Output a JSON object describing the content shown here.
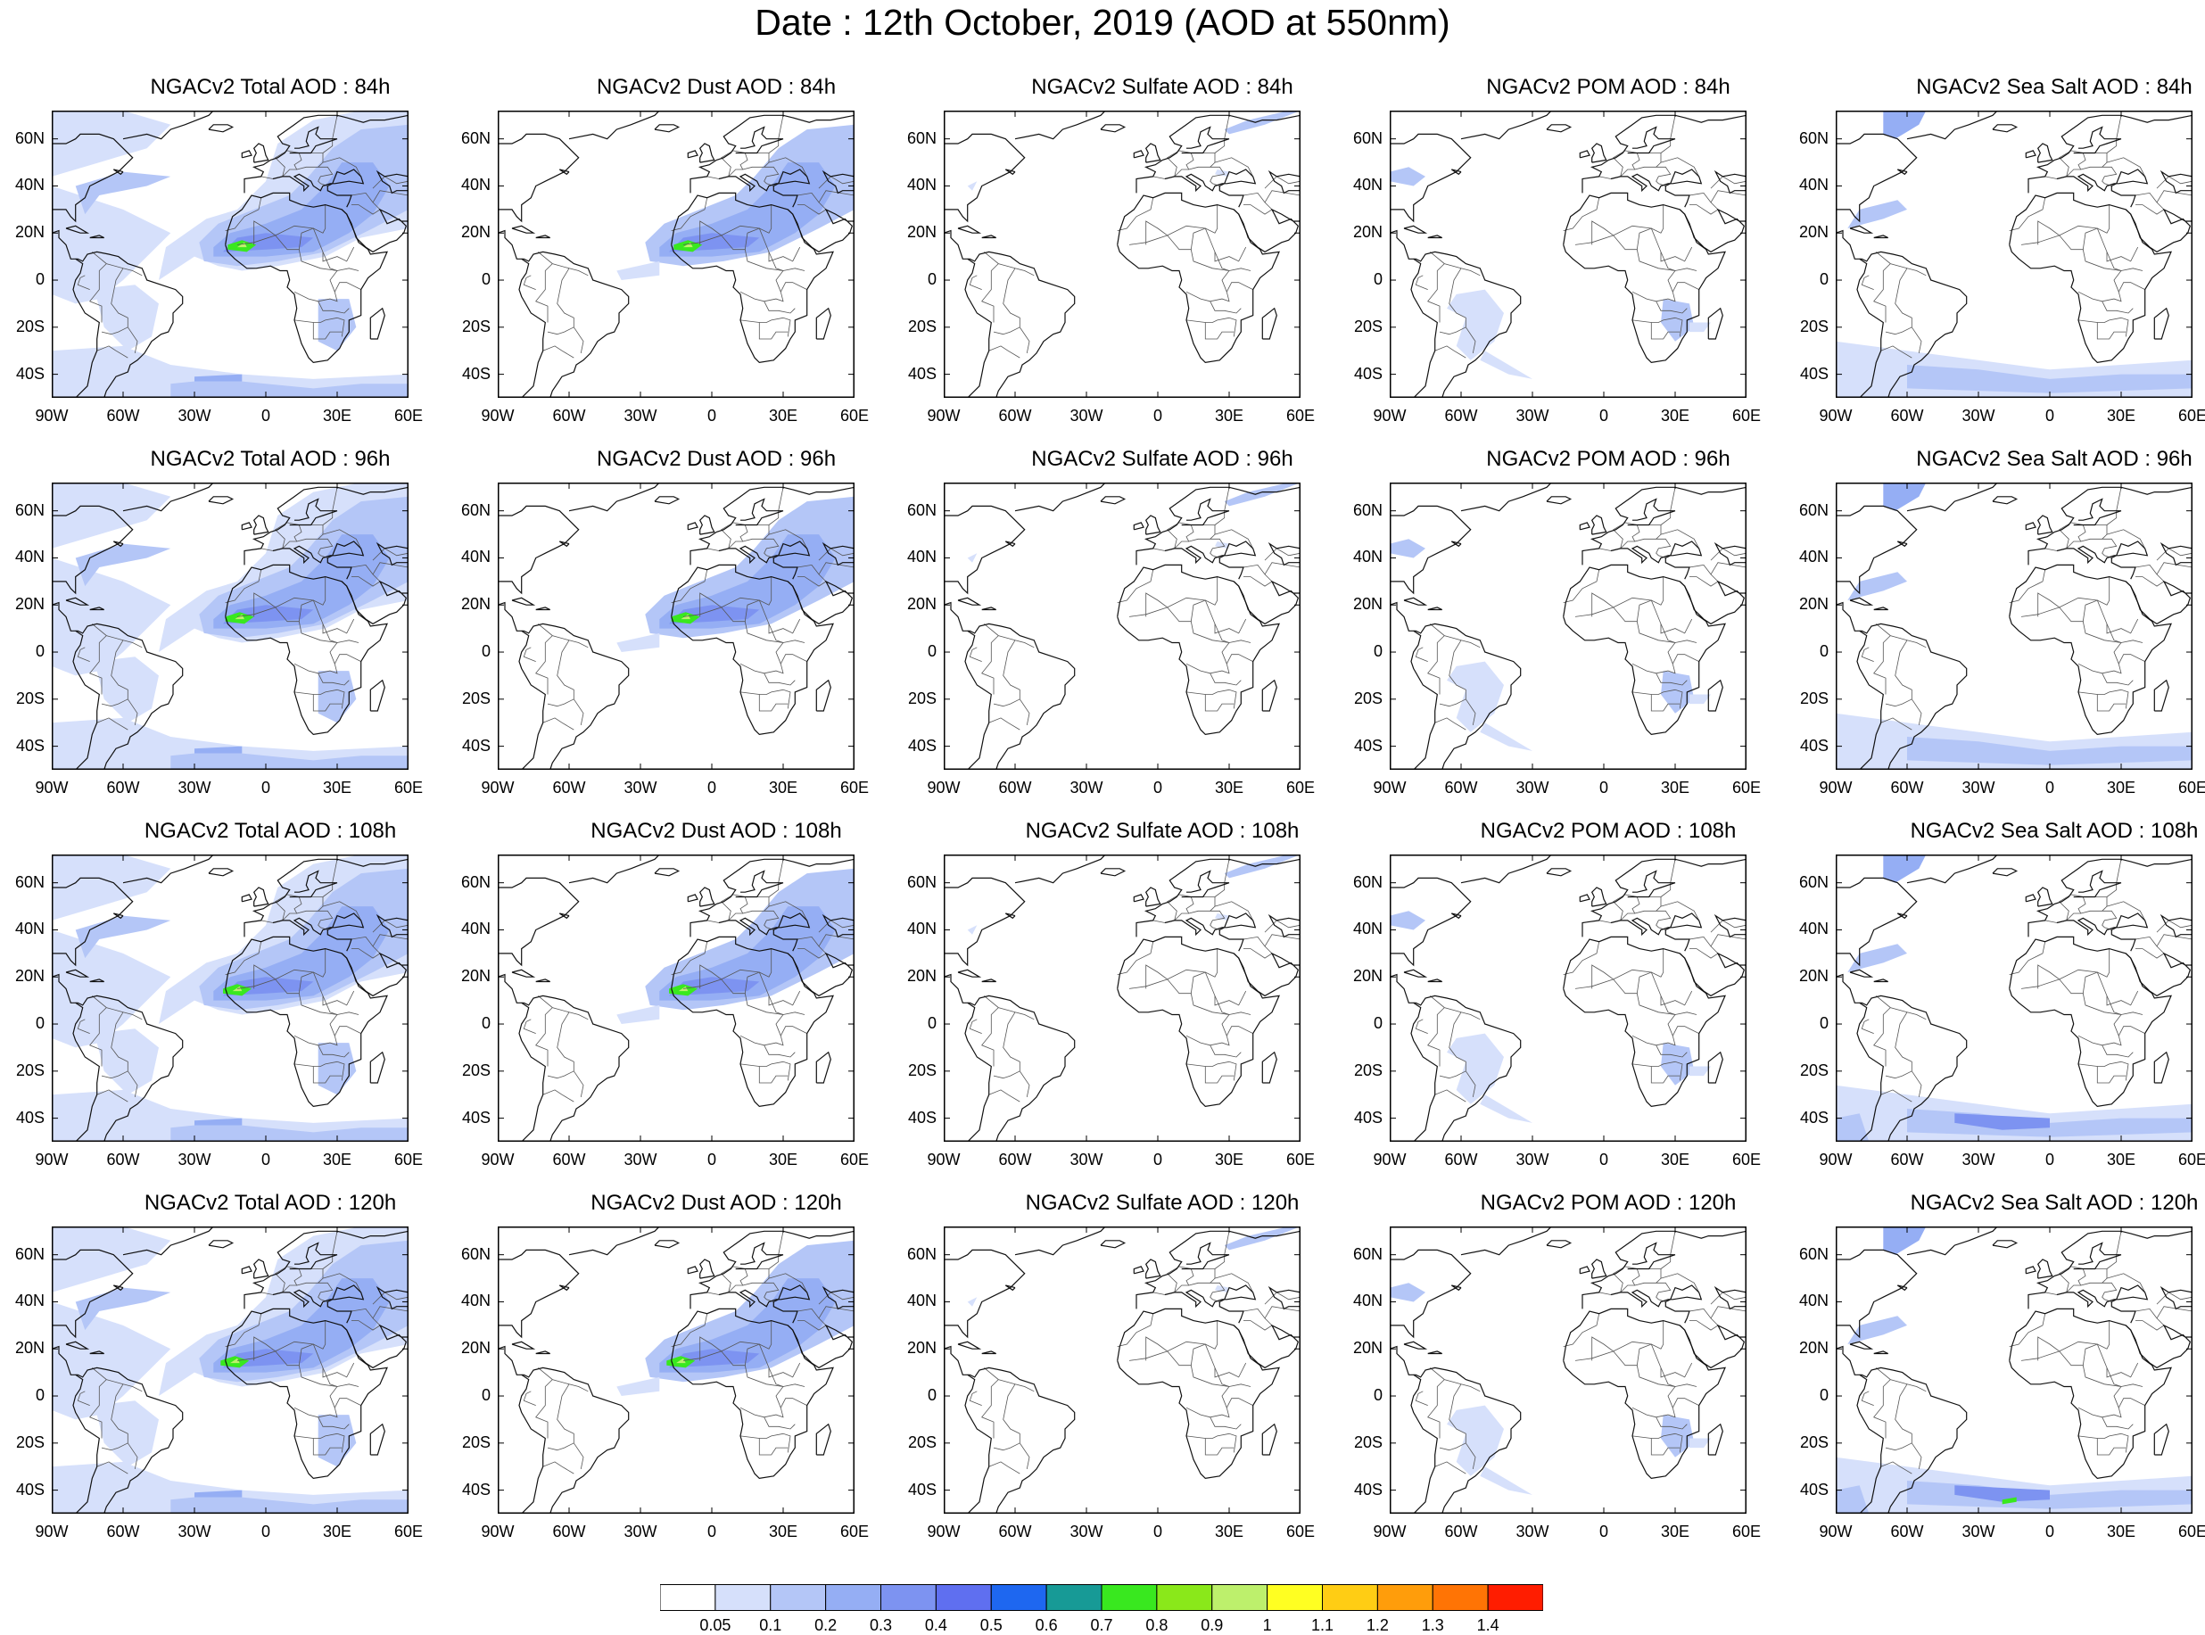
{
  "title": "Date : 12th October, 2019 (AOD at 550nm)",
  "lat_labels": [
    "60N",
    "40N",
    "20N",
    "0",
    "20S",
    "40S"
  ],
  "lon_labels": [
    "90W",
    "60W",
    "30W",
    "0",
    "30E",
    "60E"
  ],
  "panels": [
    {
      "title": "NGACv2 Total AOD : 84h",
      "species": "total",
      "lead_hours": 84
    },
    {
      "title": "NGACv2 Dust AOD : 84h",
      "species": "dust",
      "lead_hours": 84
    },
    {
      "title": "NGACv2 Sulfate AOD : 84h",
      "species": "sulfate",
      "lead_hours": 84
    },
    {
      "title": "NGACv2 POM AOD : 84h",
      "species": "pom",
      "lead_hours": 84
    },
    {
      "title": "NGACv2 Sea Salt AOD : 84h",
      "species": "seasalt",
      "lead_hours": 84
    },
    {
      "title": "NGACv2 Total AOD : 96h",
      "species": "total",
      "lead_hours": 96
    },
    {
      "title": "NGACv2 Dust AOD : 96h",
      "species": "dust",
      "lead_hours": 96
    },
    {
      "title": "NGACv2 Sulfate AOD : 96h",
      "species": "sulfate",
      "lead_hours": 96
    },
    {
      "title": "NGACv2 POM AOD : 96h",
      "species": "pom",
      "lead_hours": 96
    },
    {
      "title": "NGACv2 Sea Salt AOD : 96h",
      "species": "seasalt",
      "lead_hours": 96
    },
    {
      "title": "NGACv2 Total AOD : 108h",
      "species": "total",
      "lead_hours": 108
    },
    {
      "title": "NGACv2 Dust AOD : 108h",
      "species": "dust",
      "lead_hours": 108
    },
    {
      "title": "NGACv2 Sulfate AOD : 108h",
      "species": "sulfate",
      "lead_hours": 108
    },
    {
      "title": "NGACv2 POM AOD : 108h",
      "species": "pom",
      "lead_hours": 108
    },
    {
      "title": "NGACv2 Sea Salt AOD : 108h",
      "species": "seasalt",
      "lead_hours": 108
    },
    {
      "title": "NGACv2 Total AOD : 120h",
      "species": "total",
      "lead_hours": 120
    },
    {
      "title": "NGACv2 Dust AOD : 120h",
      "species": "dust",
      "lead_hours": 120
    },
    {
      "title": "NGACv2 Sulfate AOD : 120h",
      "species": "sulfate",
      "lead_hours": 120
    },
    {
      "title": "NGACv2 POM AOD : 120h",
      "species": "pom",
      "lead_hours": 120
    },
    {
      "title": "NGACv2 Sea Salt  AOD : 120h",
      "species": "seasalt",
      "lead_hours": 120
    }
  ],
  "colorbar": {
    "labels": [
      "0.05",
      "0.1",
      "0.2",
      "0.3",
      "0.4",
      "0.5",
      "0.6",
      "0.7",
      "0.8",
      "0.9",
      "1",
      "1.1",
      "1.2",
      "1.3",
      "1.4"
    ],
    "colors": [
      "#ffffff",
      "#d6e0fb",
      "#b4c6f7",
      "#95aef4",
      "#7d93f1",
      "#5f6ff0",
      "#1e67f0",
      "#179a96",
      "#39e81f",
      "#8ae81a",
      "#bdf06c",
      "#ffff22",
      "#ffcd14",
      "#ff9d0b",
      "#ff7405",
      "#ff1d00"
    ]
  }
}
